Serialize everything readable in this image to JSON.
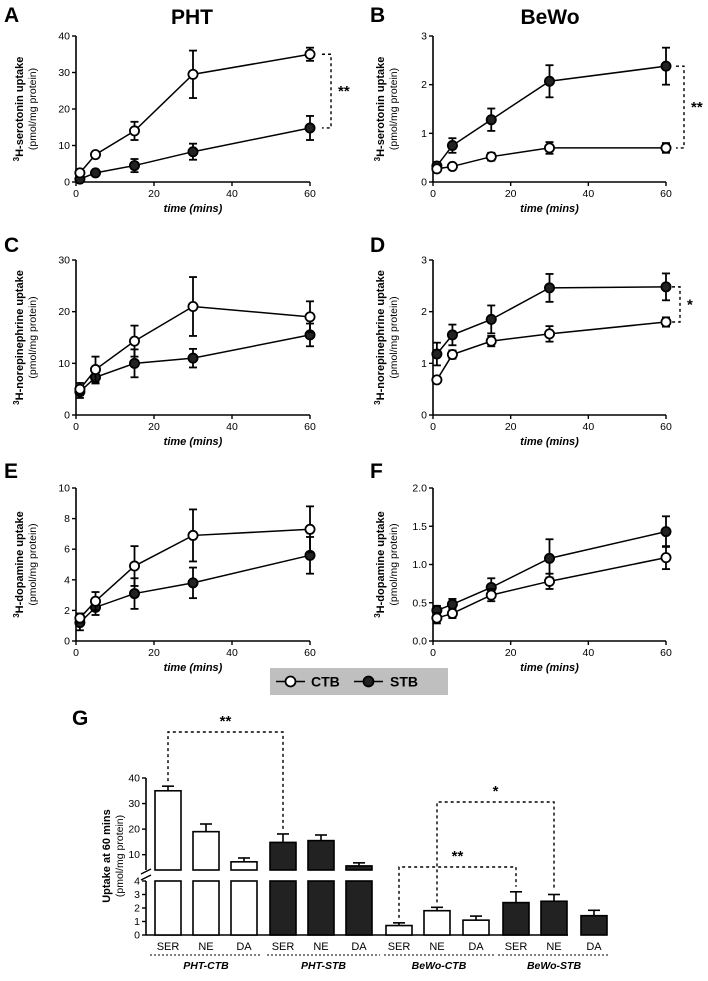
{
  "figure": {
    "panel_labels": {
      "A": "A",
      "B": "B",
      "C": "C",
      "D": "D",
      "E": "E",
      "F": "F",
      "G": "G"
    },
    "column_titles": {
      "left": "PHT",
      "right": "BeWo"
    },
    "legend": {
      "ctb": "CTB",
      "stb": "STB"
    },
    "colors": {
      "ctb_fill": "#ffffff",
      "stb_fill": "#222222",
      "line": "#000000",
      "legend_bg": "#bfbfbf"
    }
  },
  "chart_data": [
    {
      "id": "A",
      "type": "line",
      "title": "PHT",
      "xlabel": "time (mins)",
      "ylabel_main": "3H-serotonin uptake",
      "ylabel_sup": "3",
      "ylabel_rest": "H-serotonin uptake",
      "ylabel_sub": "(pmol/mg protein)",
      "xlim": [
        0,
        60
      ],
      "ylim": [
        0,
        40
      ],
      "xticks": [
        0,
        20,
        40,
        60
      ],
      "yticks": [
        0,
        10,
        20,
        30,
        40
      ],
      "series": [
        {
          "name": "CTB",
          "x": [
            1,
            5,
            15,
            30,
            60
          ],
          "y": [
            2.5,
            7.5,
            14,
            29.5,
            35
          ],
          "err": [
            0.5,
            0.8,
            2.5,
            6.5,
            1.8
          ]
        },
        {
          "name": "STB",
          "x": [
            1,
            5,
            15,
            30,
            60
          ],
          "y": [
            0.8,
            2.5,
            4.5,
            8.3,
            14.8
          ],
          "err": [
            0.3,
            0.5,
            1.8,
            2.2,
            3.3
          ]
        }
      ],
      "significance": "**"
    },
    {
      "id": "B",
      "type": "line",
      "title": "BeWo",
      "xlabel": "time (mins)",
      "ylabel_main": "3H-serotonin uptake",
      "ylabel_sup": "3",
      "ylabel_rest": "H-serotonin uptake",
      "ylabel_sub": "(pmol/mg protein)",
      "xlim": [
        0,
        60
      ],
      "ylim": [
        0,
        3
      ],
      "xticks": [
        0,
        20,
        40,
        60
      ],
      "yticks": [
        0,
        1,
        2,
        3
      ],
      "series": [
        {
          "name": "CTB",
          "x": [
            1,
            5,
            15,
            30,
            60
          ],
          "y": [
            0.27,
            0.32,
            0.52,
            0.7,
            0.7
          ],
          "err": [
            0.04,
            0.05,
            0.08,
            0.12,
            0.1
          ]
        },
        {
          "name": "STB",
          "x": [
            1,
            5,
            15,
            30,
            60
          ],
          "y": [
            0.33,
            0.75,
            1.28,
            2.07,
            2.38
          ],
          "err": [
            0.08,
            0.15,
            0.23,
            0.33,
            0.38
          ]
        }
      ],
      "significance": "**"
    },
    {
      "id": "C",
      "type": "line",
      "xlabel": "time (mins)",
      "ylabel_main": "3H-norepinephrine uptake",
      "ylabel_sup": "3",
      "ylabel_rest": "H-norepinephrine uptake",
      "ylabel_sub": "(pmol/mg protein)",
      "xlim": [
        0,
        60
      ],
      "ylim": [
        0,
        30
      ],
      "xticks": [
        0,
        20,
        40,
        60
      ],
      "yticks": [
        0,
        10,
        20,
        30
      ],
      "series": [
        {
          "name": "CTB",
          "x": [
            1,
            5,
            15,
            30,
            60
          ],
          "y": [
            5,
            8.8,
            14.3,
            21,
            19
          ],
          "err": [
            1.2,
            2.5,
            3,
            5.7,
            3
          ]
        },
        {
          "name": "STB",
          "x": [
            1,
            5,
            15,
            30,
            60
          ],
          "y": [
            4.5,
            7.3,
            10,
            11,
            15.5
          ],
          "err": [
            1.2,
            1.2,
            2.7,
            1.8,
            2.2
          ]
        }
      ],
      "significance": ""
    },
    {
      "id": "D",
      "type": "line",
      "xlabel": "time (mins)",
      "ylabel_main": "3H-norepinephrine uptake",
      "ylabel_sup": "3",
      "ylabel_rest": "H-norepinephrine uptake",
      "ylabel_sub": "(pmol/mg protein)",
      "xlim": [
        0,
        60
      ],
      "ylim": [
        0,
        3
      ],
      "xticks": [
        0,
        20,
        40,
        60
      ],
      "yticks": [
        0,
        1,
        2,
        3
      ],
      "series": [
        {
          "name": "CTB",
          "x": [
            1,
            5,
            15,
            30,
            60
          ],
          "y": [
            0.68,
            1.17,
            1.43,
            1.57,
            1.8
          ],
          "err": [
            0.04,
            0.08,
            0.1,
            0.15,
            0.09
          ]
        },
        {
          "name": "STB",
          "x": [
            1,
            5,
            15,
            30,
            60
          ],
          "y": [
            1.18,
            1.55,
            1.85,
            2.46,
            2.48
          ],
          "err": [
            0.22,
            0.2,
            0.27,
            0.27,
            0.26
          ]
        }
      ],
      "significance": "*"
    },
    {
      "id": "E",
      "type": "line",
      "xlabel": "time (mins)",
      "ylabel_main": "3H-dopamine uptake",
      "ylabel_sup": "3",
      "ylabel_rest": "H-dopamine uptake",
      "ylabel_sub": "(pmol/mg protein)",
      "xlim": [
        0,
        60
      ],
      "ylim": [
        0,
        10
      ],
      "xticks": [
        0,
        20,
        40,
        60
      ],
      "yticks": [
        0,
        2,
        4,
        6,
        8,
        10
      ],
      "series": [
        {
          "name": "CTB",
          "x": [
            1,
            5,
            15,
            30,
            60
          ],
          "y": [
            1.5,
            2.6,
            4.9,
            6.9,
            7.3
          ],
          "err": [
            0.3,
            0.6,
            1.3,
            1.7,
            1.5
          ]
        },
        {
          "name": "STB",
          "x": [
            1,
            5,
            15,
            30,
            60
          ],
          "y": [
            1.2,
            2.2,
            3.1,
            3.8,
            5.6
          ],
          "err": [
            0.5,
            0.5,
            1,
            1,
            1.2
          ]
        }
      ],
      "significance": ""
    },
    {
      "id": "F",
      "type": "line",
      "xlabel": "time (mins)",
      "ylabel_main": "3H-dopamine uptake",
      "ylabel_sup": "3",
      "ylabel_rest": "H-dopamine uptake",
      "ylabel_sub": "(pmol/mg protein)",
      "xlim": [
        0,
        60
      ],
      "ylim": [
        0,
        2
      ],
      "xticks": [
        0,
        20,
        40,
        60
      ],
      "yticks": [
        "0.0",
        "0.5",
        "1.0",
        "1.5",
        "2.0"
      ],
      "series": [
        {
          "name": "CTB",
          "x": [
            1,
            5,
            15,
            30,
            60
          ],
          "y": [
            0.3,
            0.36,
            0.6,
            0.78,
            1.09
          ],
          "err": [
            0.07,
            0.06,
            0.08,
            0.1,
            0.15
          ]
        },
        {
          "name": "STB",
          "x": [
            1,
            5,
            15,
            30,
            60
          ],
          "y": [
            0.4,
            0.48,
            0.7,
            1.08,
            1.43
          ],
          "err": [
            0.06,
            0.07,
            0.12,
            0.25,
            0.2
          ]
        }
      ],
      "significance": ""
    },
    {
      "id": "G",
      "type": "bar",
      "ylabel": "Uptake at 60 mins",
      "ylabel_sub": "(pmol/mg protein)",
      "yaxis_break": {
        "lower": [
          0,
          4
        ],
        "upper": [
          4,
          40
        ]
      },
      "yticks_lower": [
        0,
        1,
        2,
        3,
        4
      ],
      "yticks_upper": [
        10,
        20,
        30,
        40
      ],
      "groups": [
        "PHT-CTB",
        "PHT-STB",
        "BeWo-CTB",
        "BeWo-STB"
      ],
      "bars": [
        {
          "group": "PHT-CTB",
          "cat": "SER",
          "value": 35,
          "err": 1.8,
          "fill": "open"
        },
        {
          "group": "PHT-CTB",
          "cat": "NE",
          "value": 19,
          "err": 3,
          "fill": "open"
        },
        {
          "group": "PHT-CTB",
          "cat": "DA",
          "value": 7.2,
          "err": 1.5,
          "fill": "open"
        },
        {
          "group": "PHT-STB",
          "cat": "SER",
          "value": 14.8,
          "err": 3.3,
          "fill": "filled"
        },
        {
          "group": "PHT-STB",
          "cat": "NE",
          "value": 15.5,
          "err": 2.2,
          "fill": "filled"
        },
        {
          "group": "PHT-STB",
          "cat": "DA",
          "value": 5.6,
          "err": 1.2,
          "fill": "filled"
        },
        {
          "group": "BeWo-CTB",
          "cat": "SER",
          "value": 0.7,
          "err": 0.2,
          "fill": "open"
        },
        {
          "group": "BeWo-CTB",
          "cat": "NE",
          "value": 1.8,
          "err": 0.25,
          "fill": "open"
        },
        {
          "group": "BeWo-CTB",
          "cat": "DA",
          "value": 1.1,
          "err": 0.3,
          "fill": "open"
        },
        {
          "group": "BeWo-STB",
          "cat": "SER",
          "value": 2.4,
          "err": 0.8,
          "fill": "filled"
        },
        {
          "group": "BeWo-STB",
          "cat": "NE",
          "value": 2.5,
          "err": 0.5,
          "fill": "filled"
        },
        {
          "group": "BeWo-STB",
          "cat": "DA",
          "value": 1.43,
          "err": 0.4,
          "fill": "filled"
        }
      ],
      "comparisons": [
        {
          "from": "PHT-CTB SER",
          "to": "PHT-STB SER",
          "label": "**"
        },
        {
          "from": "BeWo-CTB SER",
          "to": "BeWo-STB SER",
          "label": "**"
        },
        {
          "from": "BeWo-CTB NE",
          "to": "BeWo-STB NE",
          "label": "*"
        }
      ]
    }
  ]
}
